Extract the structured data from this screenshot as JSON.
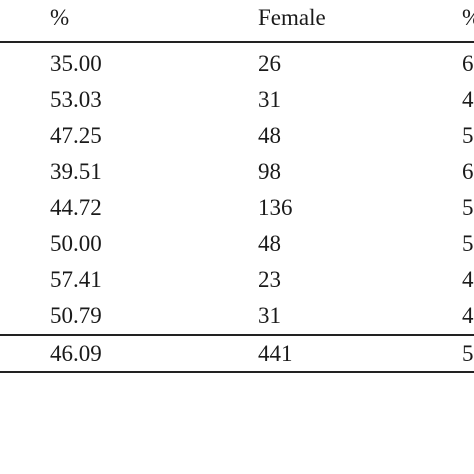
{
  "table": {
    "header": [
      "%",
      "Female",
      "%"
    ],
    "rows": [
      [
        "35.00",
        "26",
        "6"
      ],
      [
        "53.03",
        "31",
        "4"
      ],
      [
        "47.25",
        "48",
        "5"
      ],
      [
        "39.51",
        "98",
        "6"
      ],
      [
        "44.72",
        "136",
        "5"
      ],
      [
        "50.00",
        "48",
        "5"
      ],
      [
        "57.41",
        "23",
        "4"
      ],
      [
        "50.79",
        "31",
        "4"
      ]
    ],
    "total": [
      "46.09",
      "441",
      "5"
    ]
  }
}
